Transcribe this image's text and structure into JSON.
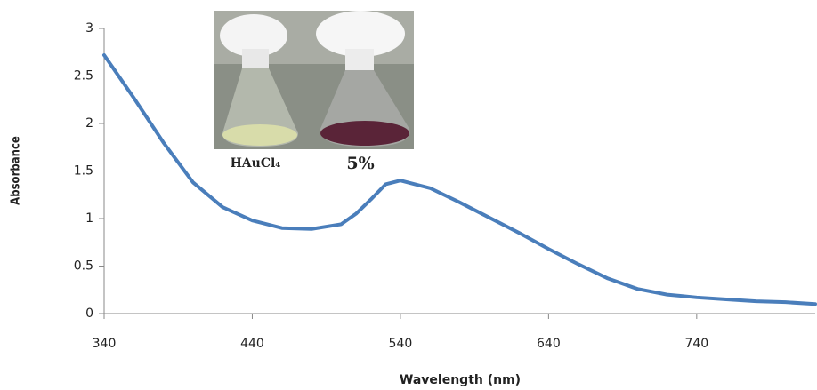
{
  "chart_data": {
    "type": "line",
    "x_label": "Wavelength (nm)",
    "y_label": "Absorbance",
    "x": [
      340,
      360,
      380,
      400,
      420,
      440,
      460,
      480,
      500,
      510,
      520,
      530,
      540,
      560,
      580,
      600,
      620,
      640,
      660,
      680,
      700,
      720,
      740,
      760,
      780,
      800,
      820
    ],
    "series": [
      {
        "name": "Absorbance",
        "color": "#4a7ebb",
        "values": [
          2.72,
          2.27,
          1.8,
          1.38,
          1.12,
          0.98,
          0.9,
          0.89,
          0.94,
          1.05,
          1.2,
          1.36,
          1.4,
          1.32,
          1.17,
          1.01,
          0.85,
          0.68,
          0.52,
          0.37,
          0.26,
          0.2,
          0.17,
          0.15,
          0.13,
          0.12,
          0.1
        ]
      }
    ],
    "xlim": [
      340,
      820
    ],
    "ylim": [
      0,
      3
    ],
    "xticks": [
      340,
      440,
      540,
      640,
      740
    ],
    "yticks": [
      0,
      0.5,
      1,
      1.5,
      2,
      2.5,
      3
    ],
    "grid": false,
    "annotations": [
      "HAuCl₄",
      "5%"
    ]
  }
}
